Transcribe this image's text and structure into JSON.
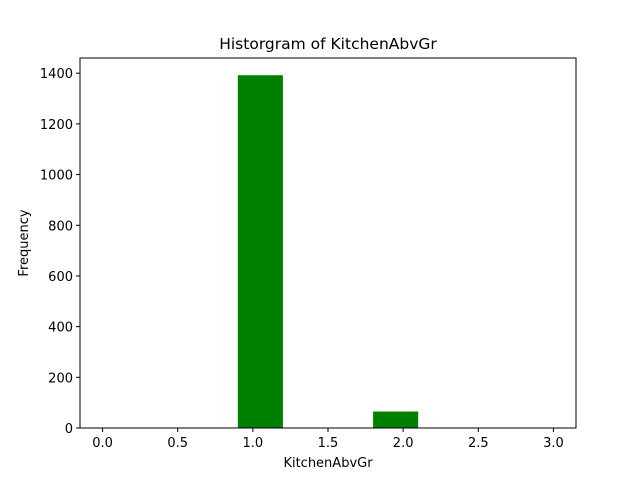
{
  "chart_data": {
    "type": "bar",
    "title": "Historgram of KitchenAbvGr",
    "xlabel": "KitchenAbvGr",
    "ylabel": "Frequency",
    "xlim": [
      -0.15,
      3.15
    ],
    "ylim": [
      0,
      1460
    ],
    "xticks": [
      "0.0",
      "0.5",
      "1.0",
      "1.5",
      "2.0",
      "2.5",
      "3.0"
    ],
    "yticks": [
      "0",
      "200",
      "400",
      "600",
      "800",
      "1000",
      "1200",
      "1400"
    ],
    "bins": [
      {
        "start": 0.0,
        "end": 0.3,
        "value": 1
      },
      {
        "start": 0.3,
        "end": 0.6,
        "value": 0
      },
      {
        "start": 0.6,
        "end": 0.9,
        "value": 0
      },
      {
        "start": 0.9,
        "end": 1.2,
        "value": 1392
      },
      {
        "start": 1.2,
        "end": 1.5,
        "value": 0
      },
      {
        "start": 1.5,
        "end": 1.8,
        "value": 0
      },
      {
        "start": 1.8,
        "end": 2.1,
        "value": 65
      },
      {
        "start": 2.1,
        "end": 2.4,
        "value": 0
      },
      {
        "start": 2.4,
        "end": 2.7,
        "value": 0
      },
      {
        "start": 2.7,
        "end": 3.0,
        "value": 2
      }
    ],
    "bar_color": "#008000",
    "grid": false,
    "legend": "none"
  }
}
